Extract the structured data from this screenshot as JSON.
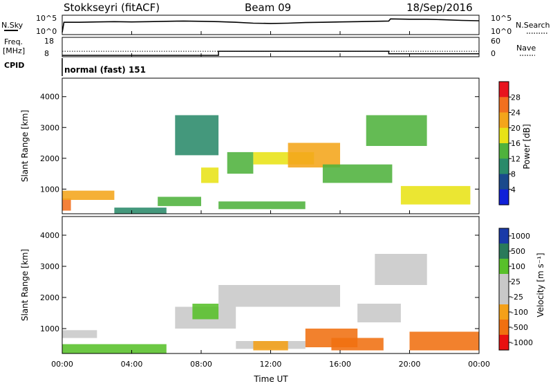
{
  "header": {
    "station": "Stokkseyri (fitACF)",
    "beam": "Beam 09",
    "date": "18/Sep/2016"
  },
  "noise_panel": {
    "left_label": "N.Sky",
    "left_ticks": [
      "10^5",
      "10^0"
    ],
    "right_ticks": [
      "10^5",
      "10^0"
    ],
    "right_label": "N.Search"
  },
  "freq_panel": {
    "left_label_1": "Freq.",
    "left_label_2": "[MHz]",
    "left_ticks": [
      "18",
      "8"
    ],
    "right_ticks": [
      "60",
      "0"
    ],
    "right_label": "Nave",
    "cpid_label": "CPID",
    "cpid_text": "normal (fast) 151"
  },
  "x_axis": {
    "ticks": [
      "00:00",
      "04:00",
      "08:00",
      "12:00",
      "16:00",
      "20:00",
      "00:00"
    ],
    "label": "Time UT"
  },
  "power_panel": {
    "y_label": "Slant Range [km]",
    "y_ticks": [
      "1000",
      "2000",
      "3000",
      "4000"
    ],
    "colorbar_label": "Power [dB]",
    "colorbar_ticks": [
      "28",
      "24",
      "20",
      "16",
      "12",
      "8",
      "4"
    ],
    "colors": [
      "#e8141e",
      "#f2701f",
      "#f4a51a",
      "#e8e216",
      "#4fb23c",
      "#2a8a6a",
      "#1a4a8c",
      "#1020d8"
    ]
  },
  "velocity_panel": {
    "y_label": "Slant Range [km]",
    "y_ticks": [
      "1000",
      "2000",
      "3000",
      "4000"
    ],
    "colorbar_label": "Velocity [m s⁻¹]",
    "colorbar_ticks": [
      "1000",
      "500",
      "100",
      "25",
      "-25",
      "-100",
      "-500",
      "-1000"
    ],
    "colors": [
      "#1a3aa8",
      "#2a7a5a",
      "#58c02a",
      "#c8c8c8",
      "#c8c8c8",
      "#f4a018",
      "#f07010",
      "#e81010"
    ]
  },
  "chart_data": {
    "type": "heatmap",
    "x_unit": "hours UT",
    "xlim": [
      0,
      24
    ],
    "ylim": [
      200,
      4600
    ],
    "noise_sky": [
      [
        0,
        0.3
      ],
      [
        0.1,
        3.6
      ],
      [
        1,
        3.6
      ],
      [
        2,
        3.7
      ],
      [
        3,
        3.8
      ],
      [
        4,
        3.7
      ],
      [
        5,
        3.8
      ],
      [
        6,
        3.9
      ],
      [
        7,
        4.0
      ],
      [
        8,
        3.9
      ],
      [
        9,
        3.8
      ],
      [
        10,
        3.6
      ],
      [
        11,
        3.3
      ],
      [
        12,
        3.2
      ],
      [
        13,
        3.3
      ],
      [
        14,
        3.5
      ],
      [
        15,
        3.6
      ],
      [
        16,
        3.7
      ],
      [
        17,
        3.8
      ],
      [
        18,
        3.9
      ],
      [
        18.8,
        4.0
      ],
      [
        18.9,
        4.7
      ],
      [
        20,
        4.6
      ],
      [
        21,
        4.6
      ],
      [
        22,
        4.4
      ],
      [
        23,
        4.2
      ],
      [
        24,
        4.1
      ]
    ],
    "frequency_mhz": [
      [
        0,
        10.7
      ],
      [
        24,
        10.7
      ]
    ],
    "nave": [
      [
        0,
        0
      ],
      [
        9,
        0
      ],
      [
        9,
        16
      ],
      [
        18.8,
        16
      ],
      [
        18.8,
        6
      ],
      [
        24,
        6
      ]
    ],
    "power_regions": [
      {
        "t": [
          0.0,
          0.5
        ],
        "range": [
          300,
          700
        ],
        "power": 24
      },
      {
        "t": [
          0.0,
          3.0
        ],
        "range": [
          650,
          950
        ],
        "power": 22
      },
      {
        "t": [
          3.0,
          6.0
        ],
        "range": [
          200,
          400
        ],
        "power": 8
      },
      {
        "t": [
          5.5,
          8.0
        ],
        "range": [
          450,
          750
        ],
        "power": 14
      },
      {
        "t": [
          6.5,
          9.0
        ],
        "range": [
          2100,
          3400
        ],
        "power": 10
      },
      {
        "t": [
          8.0,
          9.0
        ],
        "range": [
          1200,
          1700
        ],
        "power": 16
      },
      {
        "t": [
          9.5,
          11.0
        ],
        "range": [
          1500,
          2200
        ],
        "power": 14
      },
      {
        "t": [
          9.0,
          14.0
        ],
        "range": [
          350,
          600
        ],
        "power": 12
      },
      {
        "t": [
          11.0,
          14.5
        ],
        "range": [
          1800,
          2200
        ],
        "power": 18
      },
      {
        "t": [
          13.0,
          16.0
        ],
        "range": [
          1700,
          2500
        ],
        "power": 22
      },
      {
        "t": [
          15.0,
          19.0
        ],
        "range": [
          1200,
          1800
        ],
        "power": 14
      },
      {
        "t": [
          17.5,
          21.0
        ],
        "range": [
          2400,
          3400
        ],
        "power": 12
      },
      {
        "t": [
          19.5,
          23.5
        ],
        "range": [
          500,
          1100
        ],
        "power": 16
      }
    ],
    "velocity_regions": [
      {
        "t": [
          0.0,
          2.0
        ],
        "range": [
          700,
          950
        ],
        "velocity": 0
      },
      {
        "t": [
          0.0,
          6.0
        ],
        "range": [
          200,
          500
        ],
        "velocity": 150
      },
      {
        "t": [
          6.5,
          10.0
        ],
        "range": [
          1000,
          1700
        ],
        "velocity": 0
      },
      {
        "t": [
          7.5,
          9.0
        ],
        "range": [
          1300,
          1800
        ],
        "velocity": 200
      },
      {
        "t": [
          9.0,
          16.0
        ],
        "range": [
          1700,
          2400
        ],
        "velocity": 0
      },
      {
        "t": [
          10.0,
          14.0
        ],
        "range": [
          350,
          600
        ],
        "velocity": 0
      },
      {
        "t": [
          11.0,
          13.0
        ],
        "range": [
          300,
          600
        ],
        "velocity": -150
      },
      {
        "t": [
          14.0,
          17.0
        ],
        "range": [
          400,
          1000
        ],
        "velocity": -500
      },
      {
        "t": [
          15.5,
          18.5
        ],
        "range": [
          300,
          700
        ],
        "velocity": -400
      },
      {
        "t": [
          17.0,
          19.5
        ],
        "range": [
          1200,
          1800
        ],
        "velocity": 0
      },
      {
        "t": [
          18.0,
          21.0
        ],
        "range": [
          2400,
          3400
        ],
        "velocity": 0
      },
      {
        "t": [
          20.0,
          24.0
        ],
        "range": [
          300,
          900
        ],
        "velocity": -300
      }
    ]
  }
}
